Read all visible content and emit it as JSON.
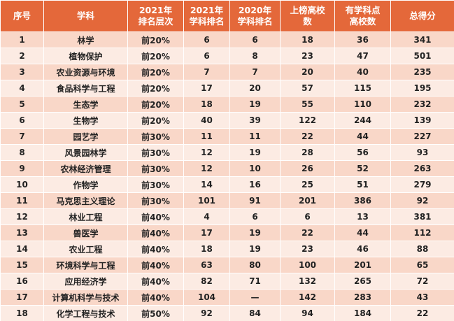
{
  "table": {
    "header": [
      [
        "序号"
      ],
      [
        "学科"
      ],
      [
        "2021年",
        "排名层次"
      ],
      [
        "2021年",
        "学科排名"
      ],
      [
        "2020年",
        "学科排名"
      ],
      [
        "上榜高校",
        "数"
      ],
      [
        "有学科点",
        "高校数"
      ],
      [
        "总得分"
      ]
    ],
    "rows": [
      [
        1,
        "林学",
        "前20%",
        6,
        6,
        18,
        36,
        341
      ],
      [
        2,
        "植物保护",
        "前20%",
        6,
        8,
        23,
        47,
        501
      ],
      [
        3,
        "农业资源与环境",
        "前20%",
        7,
        7,
        20,
        40,
        235
      ],
      [
        4,
        "食品科学与工程",
        "前20%",
        17,
        20,
        57,
        115,
        195
      ],
      [
        5,
        "生态学",
        "前20%",
        18,
        19,
        55,
        110,
        232
      ],
      [
        6,
        "生物学",
        "前20%",
        40,
        39,
        122,
        244,
        139
      ],
      [
        7,
        "园艺学",
        "前30%",
        11,
        11,
        22,
        44,
        227
      ],
      [
        8,
        "风景园林学",
        "前30%",
        12,
        19,
        28,
        56,
        93
      ],
      [
        9,
        "农林经济管理",
        "前30%",
        12,
        10,
        26,
        52,
        263
      ],
      [
        10,
        "作物学",
        "前30%",
        14,
        16,
        25,
        51,
        279
      ],
      [
        11,
        "马克思主义理论",
        "前30%",
        101,
        91,
        201,
        386,
        92
      ],
      [
        12,
        "林业工程",
        "前40%",
        4,
        6,
        6,
        13,
        381
      ],
      [
        13,
        "兽医学",
        "前40%",
        17,
        19,
        22,
        44,
        112
      ],
      [
        14,
        "农业工程",
        "前40%",
        18,
        19,
        23,
        46,
        88
      ],
      [
        15,
        "环境科学与工程",
        "前40%",
        63,
        80,
        100,
        201,
        65
      ],
      [
        16,
        "应用经济学",
        "前40%",
        82,
        71,
        132,
        265,
        72
      ],
      [
        17,
        "计算机科学与技术",
        "前40%",
        104,
        "—",
        142,
        283,
        43
      ],
      [
        18,
        "化学工程与技术",
        "前50%",
        92,
        84,
        94,
        184,
        22
      ]
    ]
  }
}
